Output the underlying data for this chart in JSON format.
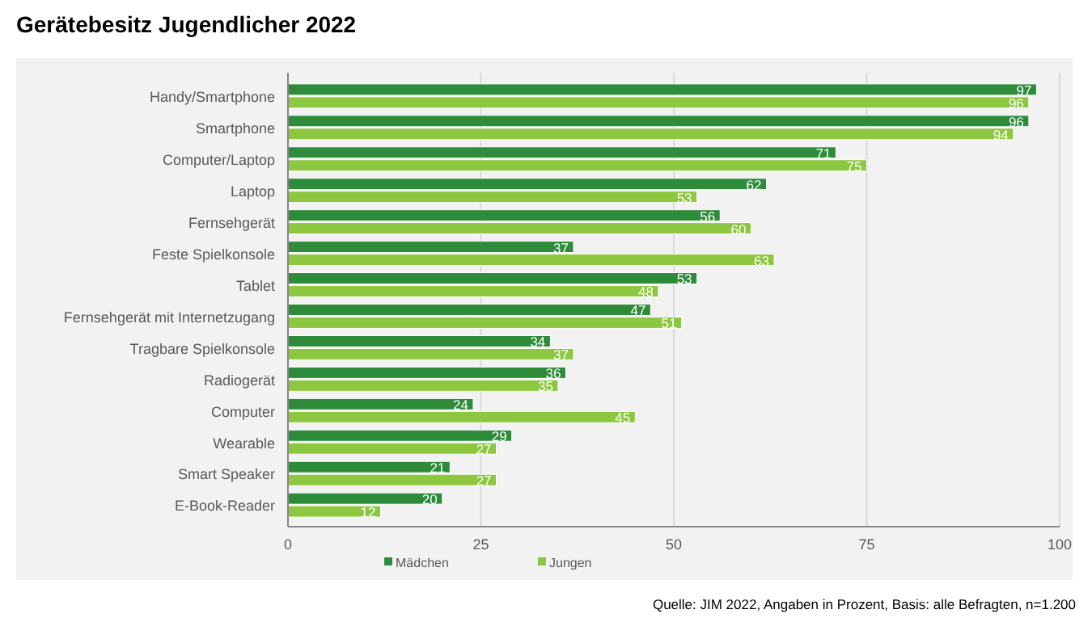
{
  "chart_data": {
    "type": "bar",
    "orientation": "horizontal",
    "title": "Gerätebesitz Jugendlicher 2022",
    "categories": [
      "Handy/Smartphone",
      "Smartphone",
      "Computer/Laptop",
      "Laptop",
      "Fernsehgerät",
      "Feste Spielkonsole",
      "Tablet",
      "Fernsehgerät mit Internetzugang",
      "Tragbare Spielkonsole",
      "Radiogerät",
      "Computer",
      "Wearable",
      "Smart Speaker",
      "E-Book-Reader"
    ],
    "series": [
      {
        "name": "Mädchen",
        "color": "#2e8b3a",
        "values": [
          97,
          96,
          71,
          62,
          56,
          37,
          53,
          47,
          34,
          36,
          24,
          29,
          21,
          20
        ]
      },
      {
        "name": "Jungen",
        "color": "#8dc63f",
        "values": [
          96,
          94,
          75,
          53,
          60,
          63,
          48,
          51,
          37,
          35,
          45,
          27,
          27,
          12
        ]
      }
    ],
    "xlim": [
      0,
      100
    ],
    "xticks": [
      0,
      25,
      50,
      75,
      100
    ],
    "grid": "x",
    "legend": "bottom",
    "data_labels": true,
    "annotations": [
      "Quelle: JIM 2022, Angaben in Prozent, Basis: alle Befragten, n=1.200"
    ]
  }
}
